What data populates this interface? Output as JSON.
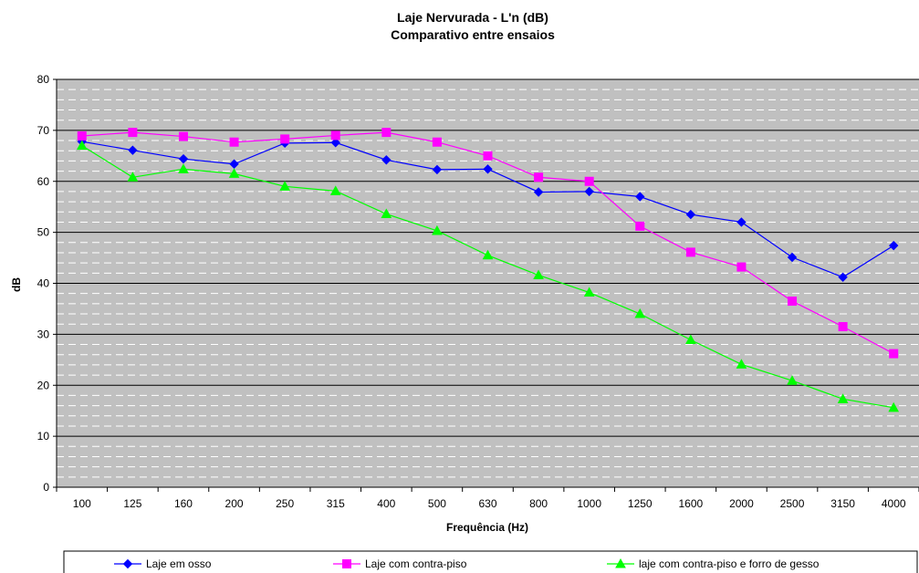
{
  "chart_data": {
    "type": "line",
    "title": "Laje Nervurada - L'n (dB)",
    "subtitle": "Comparativo entre ensaios",
    "xlabel": "Frequência (Hz)",
    "ylabel": "dB",
    "ylim": [
      0,
      80
    ],
    "yticks": [
      "0",
      "10",
      "20",
      "30",
      "40",
      "50",
      "60",
      "70",
      "80"
    ],
    "categories": [
      "100",
      "125",
      "160",
      "200",
      "250",
      "315",
      "400",
      "500",
      "630",
      "800",
      "1000",
      "1250",
      "1600",
      "2000",
      "2500",
      "3150",
      "4000"
    ],
    "grid": true,
    "legend_position": "bottom",
    "series": [
      {
        "name": "Laje em osso",
        "color": "#0000ff",
        "marker": "diamond",
        "values": [
          67.8,
          66.1,
          64.4,
          63.4,
          67.5,
          67.6,
          64.2,
          62.3,
          62.4,
          57.9,
          58.0,
          57.0,
          53.5,
          52.0,
          45.1,
          41.2,
          47.4
        ]
      },
      {
        "name": "Laje com contra-piso",
        "color": "#ff00ff",
        "marker": "square",
        "values": [
          68.9,
          69.6,
          68.8,
          67.7,
          68.3,
          69.0,
          69.6,
          67.7,
          65.0,
          60.8,
          60.0,
          51.2,
          46.1,
          43.2,
          36.5,
          31.5,
          26.2
        ]
      },
      {
        "name": "laje com contra-piso e forro de gesso",
        "color": "#00ff00",
        "marker": "triangle",
        "values": [
          67.0,
          60.8,
          62.4,
          61.5,
          59.0,
          58.1,
          53.6,
          50.3,
          45.5,
          41.6,
          38.2,
          34.0,
          28.9,
          24.1,
          20.9,
          17.3,
          15.6
        ]
      }
    ]
  }
}
